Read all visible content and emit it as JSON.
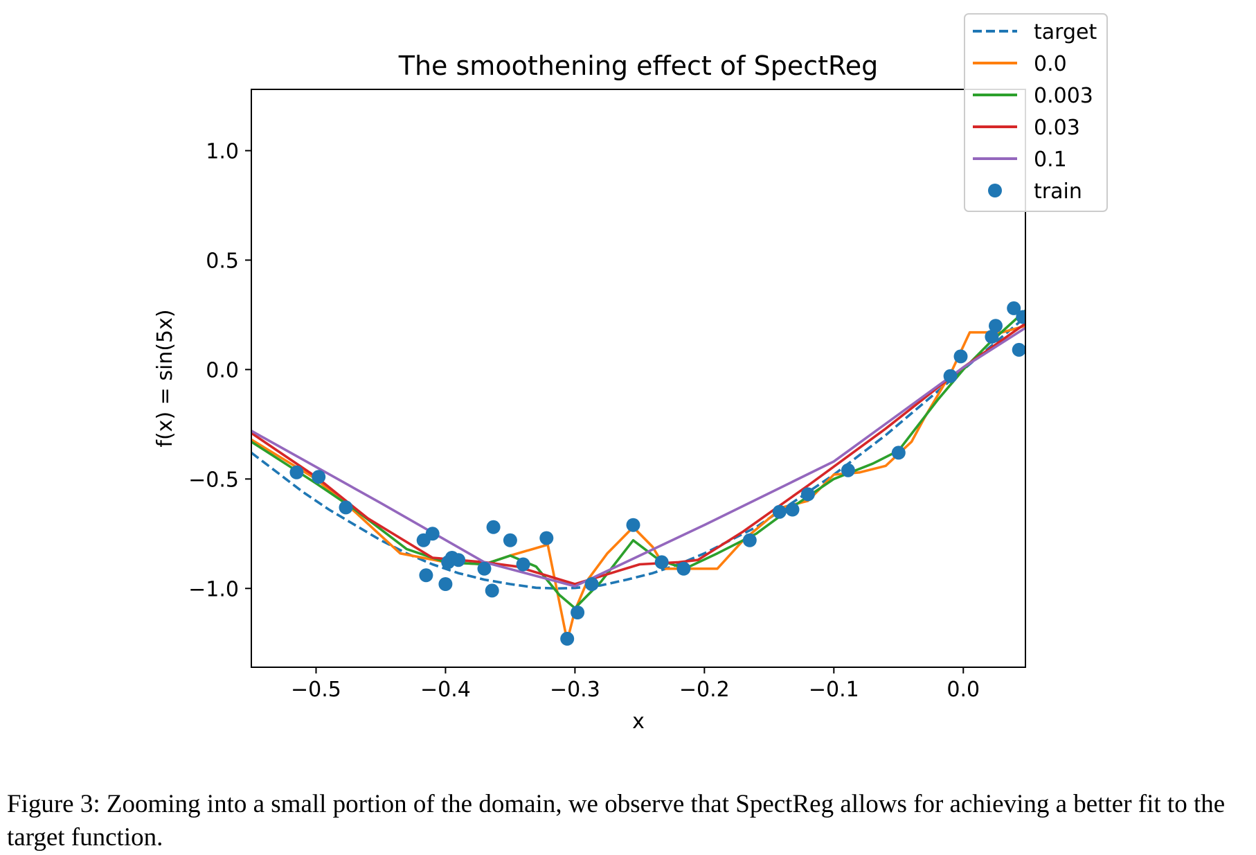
{
  "chart_data": {
    "type": "line",
    "title": "The smoothening effect of SpectReg",
    "xlabel": "x",
    "ylabel": "f(x) = sin(5x)",
    "xlim": [
      -0.55,
      0.048
    ],
    "ylim": [
      -1.36,
      1.28
    ],
    "xticks": [
      -0.5,
      -0.4,
      -0.3,
      -0.2,
      -0.1,
      0.0
    ],
    "xtick_labels": [
      "−0.5",
      "−0.4",
      "−0.3",
      "−0.2",
      "−0.1",
      "0.0"
    ],
    "yticks": [
      1.0,
      0.5,
      0.0,
      -0.5,
      -1.0
    ],
    "ytick_labels": [
      "1.0",
      "0.5",
      "0.0",
      "−0.5",
      "−1.0"
    ],
    "grid": false,
    "legend_placement": "top-right, outside axes",
    "series": [
      {
        "name": "target",
        "style": "dashed",
        "color": "#1f77b4",
        "x": [
          -0.55,
          -0.53,
          -0.51,
          -0.49,
          -0.47,
          -0.45,
          -0.43,
          -0.41,
          -0.39,
          -0.37,
          -0.35,
          -0.33,
          -0.314,
          -0.3,
          -0.28,
          -0.26,
          -0.24,
          -0.22,
          -0.2,
          -0.18,
          -0.16,
          -0.14,
          -0.12,
          -0.1,
          -0.08,
          -0.06,
          -0.04,
          -0.02,
          0.0,
          0.02,
          0.048
        ],
        "y": [
          -0.38,
          -0.47,
          -0.56,
          -0.64,
          -0.71,
          -0.78,
          -0.84,
          -0.89,
          -0.93,
          -0.96,
          -0.98,
          -0.997,
          -1.0,
          -0.998,
          -0.986,
          -0.96,
          -0.93,
          -0.89,
          -0.84,
          -0.78,
          -0.72,
          -0.64,
          -0.56,
          -0.48,
          -0.39,
          -0.3,
          -0.2,
          -0.1,
          0.0,
          0.1,
          0.24
        ]
      },
      {
        "name": "0.0",
        "color": "#ff7f0e",
        "x": [
          -0.55,
          -0.5,
          -0.47,
          -0.435,
          -0.4,
          -0.37,
          -0.35,
          -0.321,
          -0.306,
          -0.3,
          -0.29,
          -0.275,
          -0.255,
          -0.24,
          -0.23,
          -0.215,
          -0.19,
          -0.17,
          -0.14,
          -0.12,
          -0.1,
          -0.08,
          -0.06,
          -0.04,
          -0.03,
          -0.01,
          0.005,
          0.03,
          0.048
        ],
        "y": [
          -0.32,
          -0.5,
          -0.65,
          -0.84,
          -0.88,
          -0.89,
          -0.85,
          -0.8,
          -1.24,
          -1.1,
          -0.96,
          -0.84,
          -0.72,
          -0.81,
          -0.91,
          -0.91,
          -0.91,
          -0.78,
          -0.63,
          -0.6,
          -0.48,
          -0.47,
          -0.44,
          -0.33,
          -0.22,
          -0.02,
          0.17,
          0.17,
          0.2
        ]
      },
      {
        "name": "0.003",
        "color": "#2ca02c",
        "x": [
          -0.55,
          -0.5,
          -0.47,
          -0.43,
          -0.4,
          -0.37,
          -0.35,
          -0.33,
          -0.312,
          -0.3,
          -0.28,
          -0.255,
          -0.235,
          -0.215,
          -0.19,
          -0.16,
          -0.13,
          -0.1,
          -0.07,
          -0.05,
          -0.02,
          0.0,
          0.02,
          0.048
        ],
        "y": [
          -0.33,
          -0.52,
          -0.64,
          -0.82,
          -0.88,
          -0.89,
          -0.85,
          -0.9,
          -1.03,
          -1.09,
          -0.97,
          -0.78,
          -0.87,
          -0.91,
          -0.84,
          -0.75,
          -0.62,
          -0.5,
          -0.43,
          -0.37,
          -0.14,
          0.0,
          0.12,
          0.27
        ]
      },
      {
        "name": "0.03",
        "color": "#d62728",
        "x": [
          -0.55,
          -0.5,
          -0.46,
          -0.41,
          -0.37,
          -0.345,
          -0.3,
          -0.25,
          -0.22,
          -0.205,
          -0.17,
          -0.12,
          -0.06,
          0.0,
          0.048
        ],
        "y": [
          -0.29,
          -0.49,
          -0.68,
          -0.86,
          -0.88,
          -0.9,
          -0.98,
          -0.89,
          -0.88,
          -0.87,
          -0.74,
          -0.53,
          -0.27,
          0.01,
          0.21
        ]
      },
      {
        "name": "0.1",
        "color": "#9467bd",
        "x": [
          -0.55,
          -0.45,
          -0.37,
          -0.3,
          -0.2,
          -0.1,
          0.0,
          0.048
        ],
        "y": [
          -0.28,
          -0.61,
          -0.88,
          -0.99,
          -0.71,
          -0.42,
          0.01,
          0.19
        ]
      },
      {
        "name": "train",
        "type": "scatter",
        "color": "#1f77b4",
        "x": [
          -0.515,
          -0.498,
          -0.477,
          -0.417,
          -0.415,
          -0.41,
          -0.4,
          -0.398,
          -0.395,
          -0.39,
          -0.37,
          -0.364,
          -0.363,
          -0.35,
          -0.34,
          -0.322,
          -0.306,
          -0.298,
          -0.287,
          -0.255,
          -0.233,
          -0.216,
          -0.165,
          -0.142,
          -0.132,
          -0.12,
          -0.089,
          -0.05,
          -0.01,
          -0.002,
          0.022,
          0.025,
          0.039,
          0.043,
          0.046
        ],
        "y": [
          -0.47,
          -0.49,
          -0.63,
          -0.78,
          -0.94,
          -0.75,
          -0.98,
          -0.88,
          -0.86,
          -0.87,
          -0.91,
          -1.01,
          -0.72,
          -0.78,
          -0.89,
          -0.77,
          -1.23,
          -1.11,
          -0.98,
          -0.71,
          -0.88,
          -0.91,
          -0.78,
          -0.65,
          -0.64,
          -0.57,
          -0.46,
          -0.38,
          -0.03,
          0.06,
          0.15,
          0.2,
          0.28,
          0.09,
          0.24
        ]
      }
    ]
  },
  "caption": "Figure 3: Zooming into a small portion of the domain, we observe that SpectReg allows for achieving a better fit to the target function."
}
